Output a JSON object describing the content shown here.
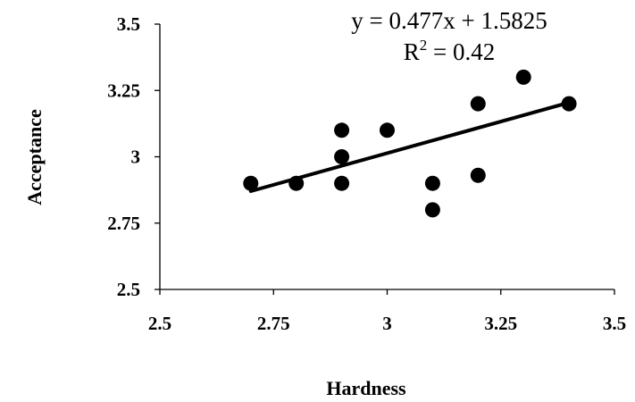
{
  "chart_data": {
    "type": "scatter",
    "title": "",
    "xlabel": "Hardness",
    "ylabel": "Acceptance",
    "xlim": [
      2.5,
      3.5
    ],
    "ylim": [
      2.5,
      3.5
    ],
    "x_ticks": [
      2.5,
      2.75,
      3,
      3.25,
      3.5
    ],
    "x_tick_labels": [
      "2.5",
      "2.75",
      "3",
      "3.25",
      "3.5"
    ],
    "y_ticks": [
      2.5,
      2.75,
      3,
      3.25,
      3.5
    ],
    "y_tick_labels": [
      "2.5",
      "2.75",
      "3",
      "3.25",
      "3.5"
    ],
    "grid": false,
    "marker_color": "#000000",
    "points": [
      {
        "x": 2.7,
        "y": 2.9
      },
      {
        "x": 2.8,
        "y": 2.9
      },
      {
        "x": 2.9,
        "y": 3.1
      },
      {
        "x": 2.9,
        "y": 3.0
      },
      {
        "x": 2.9,
        "y": 2.9
      },
      {
        "x": 3.0,
        "y": 3.1
      },
      {
        "x": 3.1,
        "y": 2.9
      },
      {
        "x": 3.1,
        "y": 2.8
      },
      {
        "x": 3.2,
        "y": 3.2
      },
      {
        "x": 3.2,
        "y": 2.93
      },
      {
        "x": 3.3,
        "y": 3.3
      },
      {
        "x": 3.4,
        "y": 3.2
      }
    ],
    "trendline": {
      "slope": 0.477,
      "intercept": 1.5825,
      "x_start": 2.7,
      "x_end": 3.4,
      "color": "#000000"
    },
    "annotations": {
      "equation": "y = 0.477x + 1.5825",
      "r2_prefix": "R",
      "r2_sup": "2",
      "r2_value": " = 0.42"
    }
  }
}
